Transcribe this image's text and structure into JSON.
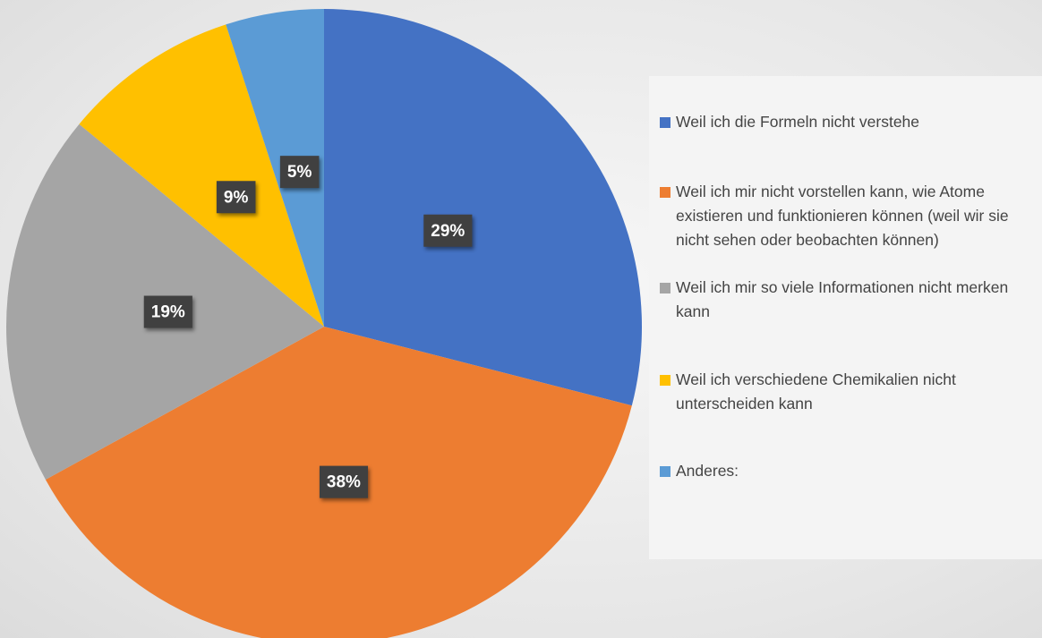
{
  "chart_data": {
    "type": "pie",
    "categories": [
      "Weil ich die Formeln nicht verstehe",
      "Weil ich mir nicht vorstellen kann, wie Atome existieren und funktionieren können (weil wir sie nicht sehen oder beobachten können)",
      "Weil ich mir so viele Informationen nicht merken kann",
      "Weil ich verschiedene Chemikalien nicht unterscheiden kann",
      "Anderes:"
    ],
    "values": [
      29,
      38,
      19,
      9,
      5
    ],
    "value_labels": [
      "29%",
      "38%",
      "19%",
      "9%",
      "5%"
    ],
    "colors": [
      "#4472c4",
      "#ed7d31",
      "#a5a5a5",
      "#ffc000",
      "#5b9bd5"
    ],
    "legend": "right"
  }
}
